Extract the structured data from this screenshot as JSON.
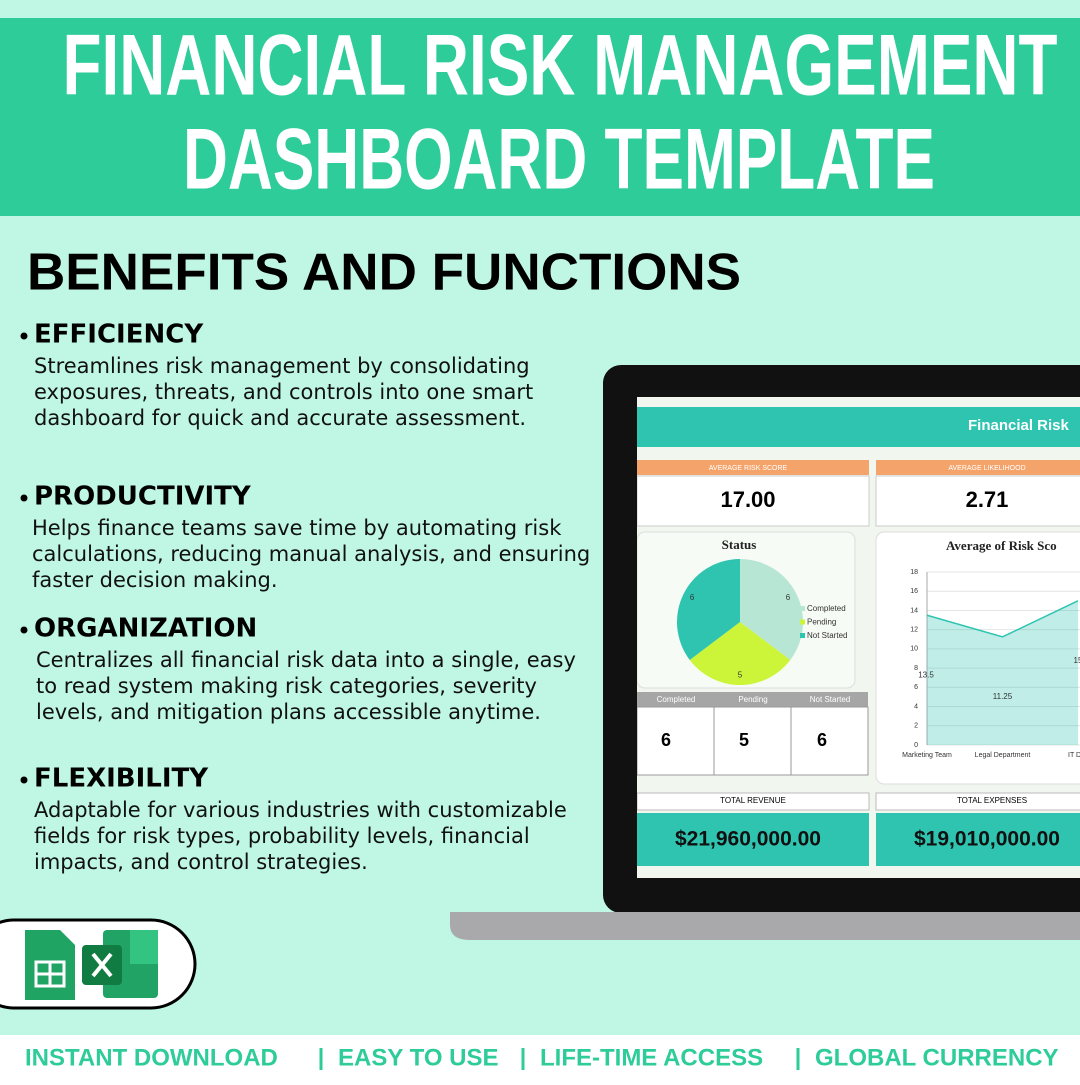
{
  "header": {
    "title_lines": [
      "FINANCIAL RISK MANAGEMENT",
      "DASHBOARD TEMPLATE"
    ]
  },
  "section_title": "BENEFITS AND FUNCTIONS",
  "benefits": [
    {
      "heading": "EFFICIENCY",
      "lines": [
        "Streamlines risk management by consolidating",
        "exposures, threats, and controls into one smart",
        "dashboard for quick and accurate assessment."
      ]
    },
    {
      "heading": "PRODUCTIVITY",
      "lines": [
        "Helps finance teams save time by automating risk",
        "calculations, reducing manual analysis, and ensuring",
        "faster decision making."
      ]
    },
    {
      "heading": "ORGANIZATION",
      "lines": [
        "Centralizes all financial risk data into a single, easy",
        "to read system making risk categories, severity",
        "levels, and mitigation plans accessible anytime."
      ]
    },
    {
      "heading": "FLEXIBILITY",
      "lines": [
        "Adaptable for various industries with customizable",
        "fields for risk types, probability levels, financial",
        "impacts, and control strategies."
      ]
    }
  ],
  "dashboard": {
    "title": "Financial Risk",
    "kpis": [
      {
        "label": "AVERAGE RISK SCORE",
        "value": "17.00"
      },
      {
        "label": "AVERAGE LIKELIHOOD",
        "value": "2.71"
      }
    ],
    "status_table": {
      "headers": [
        "Completed",
        "Pending",
        "Not Started"
      ],
      "values": [
        "6",
        "5",
        "6"
      ]
    },
    "totals": [
      {
        "label": "TOTAL REVENUE",
        "value": "$21,960,000.00"
      },
      {
        "label": "TOTAL EXPENSES",
        "value": "$19,010,000.00"
      }
    ],
    "charts": [
      {
        "type": "pie",
        "title": "Status",
        "categories": [
          "Completed",
          "Pending",
          "Not Started"
        ],
        "values": [
          6,
          5,
          6
        ],
        "colors": [
          "#b8e6d4",
          "#ccf53a",
          "#2ec4b0"
        ]
      },
      {
        "type": "line",
        "title": "Average of Risk Sco",
        "categories": [
          "Marketing Team",
          "Legal Department",
          "IT Depa"
        ],
        "values": [
          13.5,
          11.25,
          15
        ],
        "color": "#2ec4b0",
        "ylim": [
          0,
          18
        ],
        "yticks": [
          0,
          2,
          4,
          6,
          8,
          10,
          12,
          14,
          16,
          18
        ]
      }
    ]
  },
  "footer": {
    "items": [
      "INSTANT DOWNLOAD",
      "EASY TO USE",
      "LIFE-TIME ACCESS",
      "GLOBAL CURRENCY"
    ]
  }
}
